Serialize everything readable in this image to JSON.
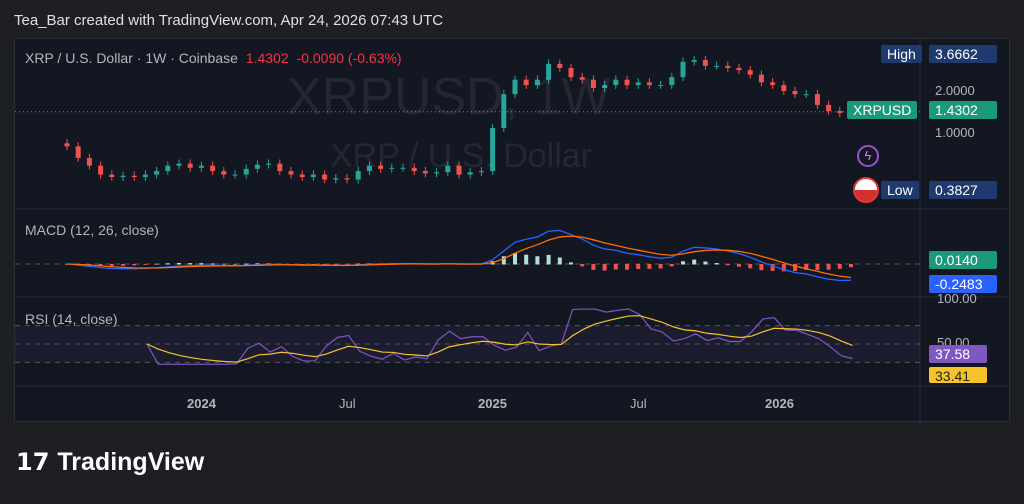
{
  "header": {
    "credit": "Tea_Bar created with TradingView.com, Apr 24, 2026 07:43 UTC"
  },
  "symbol": {
    "name": "XRP / U.S. Dollar · 1W · Coinbase",
    "last": "1.4302",
    "change": "-0.0090 (-0.63%)",
    "watermark": "XRPUSD, 1W",
    "watermark_sub": "XRP / U.S. Dollar",
    "ticker": "XRPUSD"
  },
  "price_axis": {
    "high_label": "High",
    "high": "3.6662",
    "low_label": "Low",
    "low": "0.3827",
    "ticks": [
      "2.0000",
      "1.0000"
    ],
    "last": "1.4302"
  },
  "macd": {
    "label": "MACD (12, 26, close)",
    "hist_value": "0.0140",
    "signal_value": "-0.2483"
  },
  "rsi": {
    "label": "RSI (14, close)",
    "ticks": [
      "100.00",
      "50.00"
    ],
    "rsi_value": "37.58",
    "ma_value": "33.41"
  },
  "time_axis": [
    "2024",
    "Jul",
    "2025",
    "Jul",
    "2026"
  ],
  "brand": "TradingView",
  "colors": {
    "up": "#26a69a",
    "down": "#ef5350",
    "macd": "#2962ff",
    "signal": "#ff6d00",
    "rsi": "#7e57c2",
    "rsi_ma": "#f7c32c"
  },
  "chart_data": {
    "type": "candlestick",
    "title": "XRP / U.S. Dollar · 1W · Coinbase",
    "interval": "2 weeks (approx.)",
    "x_start": "2023-07",
    "x_end": "2026-04",
    "closes": [
      0.82,
      0.68,
      0.6,
      0.52,
      0.5,
      0.51,
      0.5,
      0.52,
      0.55,
      0.6,
      0.62,
      0.58,
      0.6,
      0.55,
      0.52,
      0.52,
      0.57,
      0.61,
      0.62,
      0.55,
      0.52,
      0.5,
      0.52,
      0.48,
      0.49,
      0.48,
      0.55,
      0.6,
      0.57,
      0.58,
      0.58,
      0.55,
      0.53,
      0.54,
      0.6,
      0.52,
      0.54,
      0.55,
      1.1,
      1.9,
      2.4,
      2.2,
      2.4,
      3.1,
      2.9,
      2.5,
      2.4,
      2.1,
      2.2,
      2.4,
      2.2,
      2.3,
      2.2,
      2.2,
      2.5,
      3.2,
      3.3,
      3.0,
      3.0,
      2.9,
      2.8,
      2.6,
      2.3,
      2.2,
      2.0,
      1.9,
      1.9,
      1.6,
      1.45,
      1.4,
      1.43
    ],
    "yscale": "log",
    "ylim": [
      0.38,
      3.67
    ]
  }
}
